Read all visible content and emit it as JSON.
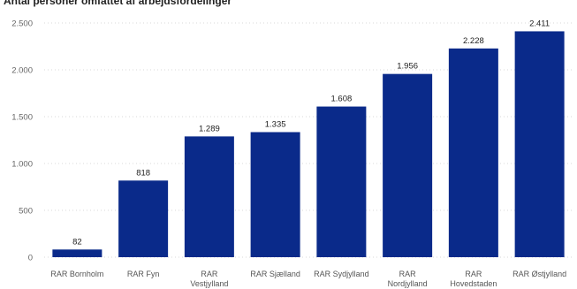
{
  "chart_data": {
    "type": "bar",
    "title": "Antal personer omfattet af arbejdsfordelinger",
    "categories": [
      [
        "RAR Bornholm"
      ],
      [
        "RAR Fyn"
      ],
      [
        "RAR",
        "Vestjylland"
      ],
      [
        "RAR Sjælland"
      ],
      [
        "RAR Sydjylland"
      ],
      [
        "RAR",
        "Nordjylland"
      ],
      [
        "RAR",
        "Hovedstaden"
      ],
      [
        "RAR Østjylland"
      ]
    ],
    "values": [
      82,
      818,
      1289,
      1335,
      1608,
      1956,
      2228,
      2411
    ],
    "value_labels": [
      "82",
      "818",
      "1.289",
      "1.335",
      "1.608",
      "1.956",
      "2.228",
      "2.411"
    ],
    "yticks": [
      0,
      500,
      1000,
      1500,
      2000,
      2500
    ],
    "ytick_labels": [
      "0",
      "500",
      "1.000",
      "1.500",
      "2.000",
      "2.500"
    ],
    "ylim": [
      0,
      2500
    ],
    "xlabel": "",
    "ylabel": "",
    "grid": true,
    "bar_color": "#0a2a8a"
  }
}
